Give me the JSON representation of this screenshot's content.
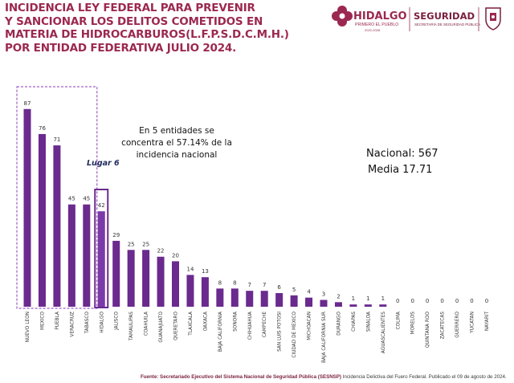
{
  "title_lines": [
    "INCIDENCIA LEY FEDERAL PARA PREVENIR",
    "Y SANCIONAR LOS DELITOS COMETIDOS EN",
    "MATERIA DE HIDROCARBUROS(L.F.P.S.D.C.M.H.)",
    "POR ENTIDAD FEDERATIVA JULIO 2024."
  ],
  "logos": {
    "hidalgo": "HIDALGO",
    "hidalgo_tagline": "PRIMERO EL PUEBLO",
    "hidalgo_years": "2022-2028",
    "seguridad": "SEGURIDAD",
    "seguridad_sub": "SECRETARÍA DE SEGURIDAD PÚBLICA"
  },
  "chart_data": {
    "type": "bar",
    "categories": [
      "NUEVO LEON",
      "MEXICO",
      "PUEBLA",
      "VERACRUZ",
      "TABASCO",
      "HIDALGO",
      "JALISCO",
      "TAMAULIPAS",
      "COAHUILA",
      "GUANAJUATO",
      "QUERETARO",
      "TLAXCALA",
      "OAXACA",
      "BAJA CALIFORNIA",
      "SONORA",
      "CHIHUAHUA",
      "CAMPECHE",
      "SAN LUIS POTOSI",
      "CIUDAD DE MEXICO",
      "MICHOACAN",
      "BAJA CALIFORNIA SUR",
      "DURANGO",
      "CHIAPAS",
      "SINALOA",
      "AGUASCALIENTES",
      "COLIMA",
      "MORELOS",
      "QUINTANA ROO",
      "ZACATECAS",
      "GUERRERO",
      "YUCATAN",
      "NAYARIT"
    ],
    "values": [
      87,
      76,
      71,
      45,
      45,
      42,
      29,
      25,
      25,
      22,
      20,
      14,
      13,
      8,
      8,
      7,
      7,
      6,
      5,
      4,
      3,
      2,
      1,
      1,
      1,
      0,
      0,
      0,
      0,
      0,
      0,
      0
    ],
    "ylim": [
      0,
      100
    ],
    "annotations": {
      "top5": "En 5 entidades se concentra el 57.14% de la incidencia  nacional",
      "rank_label": "Lugar 6",
      "nacional": "Nacional: 567",
      "media": "Media 17.71"
    },
    "highlight_top_group": [
      0,
      4
    ],
    "highlight_rank_index": 5,
    "bar_color": "#6a2a8e",
    "highlight_color": "#7b3aa8"
  },
  "source": {
    "label": "Fuente: Secretariado Ejecutivo del Sistema Nacional de Seguridad Pública (SESNSP)",
    "detail": " Incidencia Delictiva del Fuero Federal. Publicado el 09 de agosto de 2024."
  },
  "colors": {
    "title": "#9b2850",
    "accent": "#9b2850",
    "bar": "#6a2a8e"
  }
}
